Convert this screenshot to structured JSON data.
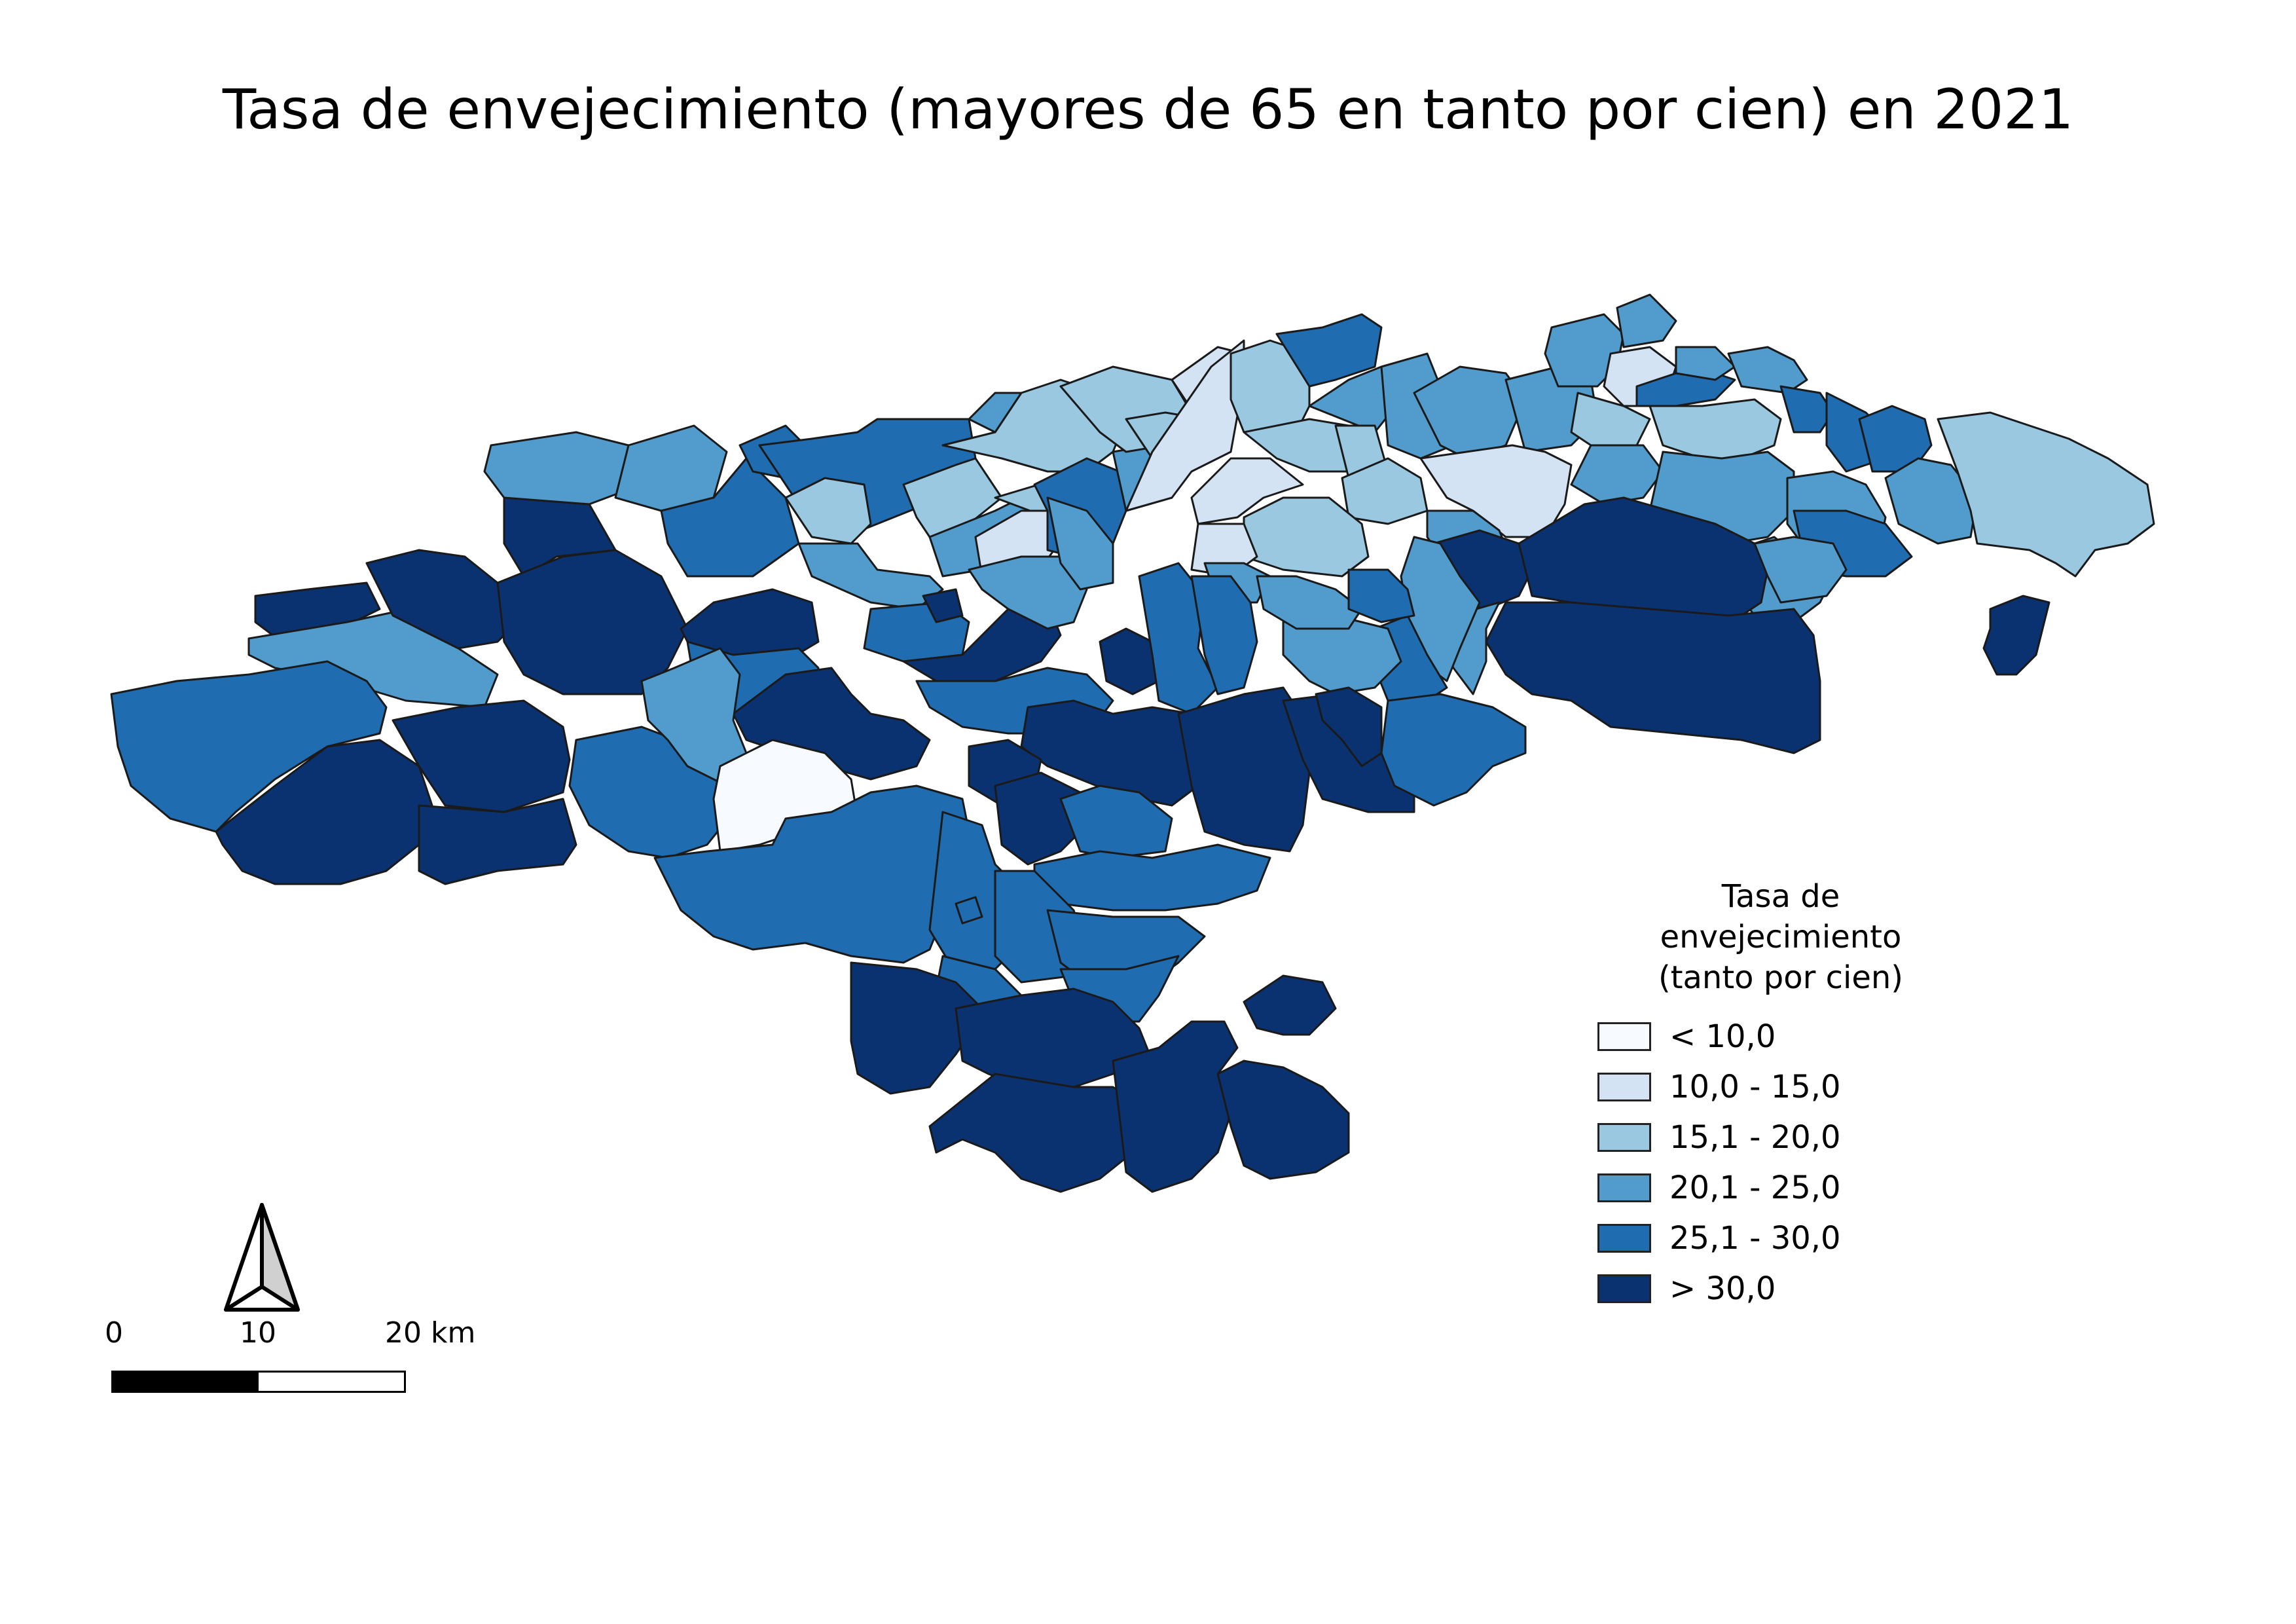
{
  "map": {
    "title": "Tasa de envejecimiento (mayores de 65 en tanto por cien) en 2021",
    "region_fill_by_class": {
      "lt10": "#f7fbff",
      "10_15": "#d3e3f3",
      "15_20": "#9ac8e0",
      "20_25": "#519ccc",
      "25_30": "#1f6cb0",
      "gt30": "#0b3270"
    },
    "border_color": "#1a1a1a"
  },
  "legend": {
    "title_line1": "Tasa de envejecimiento",
    "title_line2": "(tanto por cien)",
    "items": [
      {
        "label": "< 10,0",
        "color": "#f7fbff"
      },
      {
        "label": "10,0 - 15,0",
        "color": "#d3e3f3"
      },
      {
        "label": "15,1 - 20,0",
        "color": "#9ac8e0"
      },
      {
        "label": "20,1 - 25,0",
        "color": "#519ccc"
      },
      {
        "label": "25,1 - 30,0",
        "color": "#1f6cb0"
      },
      {
        "label": "> 30,0",
        "color": "#0b3270"
      }
    ]
  },
  "scale": {
    "labels": [
      "0",
      "10",
      "20 km"
    ]
  },
  "north_arrow": {
    "icon": "north-arrow-icon"
  }
}
